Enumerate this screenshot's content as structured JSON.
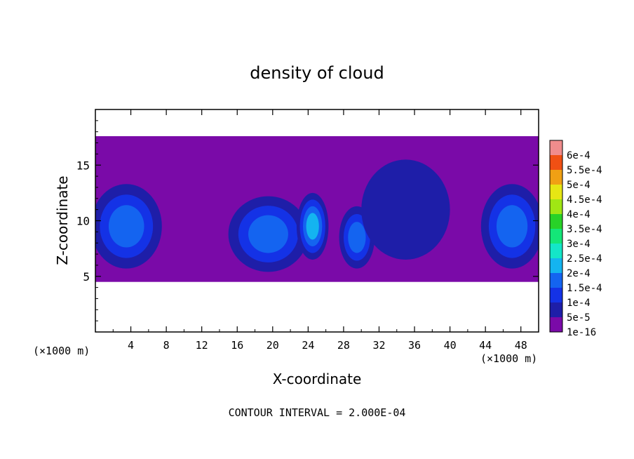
{
  "chart_data": {
    "type": "heatmap",
    "title": "density of cloud",
    "xlabel": "X-coordinate",
    "ylabel": "Z-coordinate",
    "x_unit": "(×1000 m)",
    "z_unit": "(×1000 m)",
    "xlim": [
      0,
      50
    ],
    "ylim": [
      0,
      20
    ],
    "x_ticks": [
      "4",
      "8",
      "12",
      "16",
      "20",
      "24",
      "28",
      "32",
      "36",
      "40",
      "44",
      "48"
    ],
    "y_ticks": [
      "5",
      "10",
      "15"
    ],
    "x_tick_values": [
      4,
      8,
      12,
      16,
      20,
      24,
      28,
      32,
      36,
      40,
      44,
      48
    ],
    "y_tick_values": [
      5,
      10,
      15
    ],
    "colorbar": {
      "labels": [
        "1e-16",
        "5e-5",
        "1e-4",
        "1.5e-4",
        "2e-4",
        "2.5e-4",
        "3e-4",
        "3.5e-4",
        "4e-4",
        "4.5e-4",
        "5e-4",
        "5.5e-4",
        "6e-4"
      ],
      "values": [
        1e-16,
        5e-05,
        0.0001,
        0.00015,
        0.0002,
        0.00025,
        0.0003,
        0.00035,
        0.0004,
        0.00045,
        0.0005,
        0.00055,
        0.0006
      ],
      "colors": [
        "#7a0aa8",
        "#1e1ea8",
        "#1432e6",
        "#1464f0",
        "#14b4f0",
        "#14e6c8",
        "#14e678",
        "#28d228",
        "#a0e614",
        "#e6e614",
        "#f0a014",
        "#f05014",
        "#f08c8c"
      ]
    },
    "cloud_layer": {
      "z_bottom": 4.5,
      "z_top": 17.6
    },
    "cells": [
      {
        "x": 3.5,
        "z": 9.5,
        "rx": 4.0,
        "rz": 3.8,
        "peak": 0.00019
      },
      {
        "x": 19.5,
        "z": 8.8,
        "rx": 4.5,
        "rz": 3.4,
        "peak": 0.00017
      },
      {
        "x": 24.5,
        "z": 9.5,
        "rx": 1.8,
        "rz": 3.0,
        "peak": 0.00021
      },
      {
        "x": 29.5,
        "z": 8.5,
        "rx": 2.0,
        "rz": 2.8,
        "peak": 0.00016
      },
      {
        "x": 35.0,
        "z": 11.0,
        "rx": 5.0,
        "rz": 4.5,
        "peak": 8e-05
      },
      {
        "x": 47.0,
        "z": 9.5,
        "rx": 3.5,
        "rz": 3.8,
        "peak": 0.00019
      }
    ],
    "grid": false
  },
  "footer": {
    "contour_interval": "CONTOUR INTERVAL = 2.000E-04"
  },
  "colors": {
    "background": "#ffffff",
    "layer_base": "#7a0aa8"
  }
}
